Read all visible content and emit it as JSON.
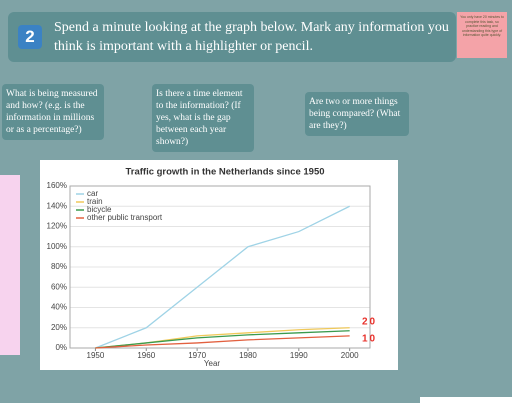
{
  "header": {
    "number": "2",
    "instruction": "Spend a minute looking at the graph below. Mark any information you think is important with a highlighter or pencil."
  },
  "note": "You only have 20 minutes to complete this task, so practice reading and understanding this type of information quite quickly.",
  "questions": [
    "What is being measured and how? (e.g. is the information in millions or as a percentage?)",
    "Is there a time element to the information? (If yes, what is the gap between each year shown?)",
    "Are two or more things being compared? (What are they?)"
  ],
  "chart_data": {
    "type": "line",
    "title": "Traffic growth in the Netherlands since 1950",
    "x_label": "Year",
    "x": [
      1950,
      1960,
      1970,
      1980,
      1990,
      2000
    ],
    "series": [
      {
        "name": "car",
        "color": "#9fd3e6",
        "values": [
          0,
          20,
          60,
          100,
          115,
          140
        ]
      },
      {
        "name": "train",
        "color": "#f0c95a",
        "values": [
          0,
          5,
          12,
          15,
          18,
          20
        ]
      },
      {
        "name": "bicycle",
        "color": "#3a9a4e",
        "values": [
          0,
          5,
          10,
          13,
          15,
          17
        ]
      },
      {
        "name": "other public transport",
        "color": "#e2603f",
        "values": [
          0,
          3,
          5,
          8,
          10,
          12
        ]
      }
    ],
    "xlim": [
      1945,
      2004
    ],
    "xticks": [
      1950,
      1960,
      1970,
      1980,
      1990,
      2000
    ],
    "ylim": [
      0,
      160
    ],
    "yticks": [
      {
        "value": 0,
        "label": "0%"
      },
      {
        "value": 20,
        "label": "20%"
      },
      {
        "value": 40,
        "label": "40%"
      },
      {
        "value": 60,
        "label": "60%"
      },
      {
        "value": 80,
        "label": "80%"
      },
      {
        "value": 100,
        "label": "100%"
      },
      {
        "value": 120,
        "label": "120%"
      },
      {
        "value": 140,
        "label": "140%"
      },
      {
        "value": 160,
        "label": "160%"
      }
    ],
    "grid": true,
    "legend": "top-left",
    "annotations": [
      "20",
      "10"
    ]
  }
}
